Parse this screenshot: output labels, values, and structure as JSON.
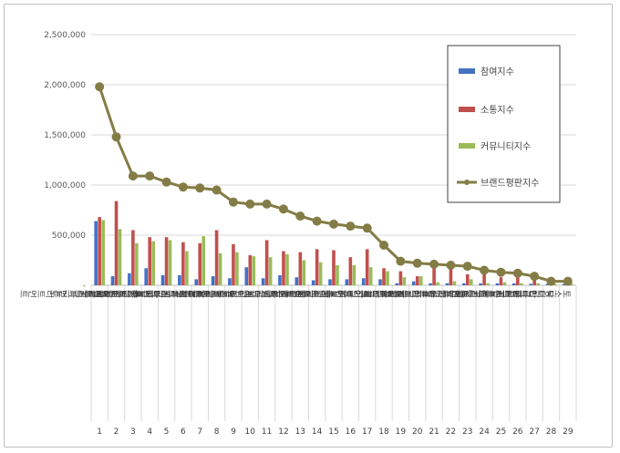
{
  "chart_data": {
    "type": "bar",
    "title": "",
    "xlabel": "",
    "ylabel": "",
    "ylim": [
      0,
      2500000
    ],
    "yticks": [
      "-",
      "500,000",
      "1,000,000",
      "1,500,000",
      "2,000,000",
      "2,500,000"
    ],
    "grid": true,
    "legend_position": "top-right",
    "categories": [
      "헤드스파7트리트먼트",
      "미장센트리트먼트",
      "양방트리트먼트",
      "아모스트리트먼트",
      "케라시스트리트먼트",
      "케라스타즈트리트먼트",
      "로블루트리트먼트",
      "모로칸오일트리트먼트",
      "밀본트리트먼트",
      "제이숲트리트먼트",
      "엘라스틴트리트먼트",
      "츠바키트리트먼트",
      "팬틴트리트먼트",
      "려트리트먼트",
      "모레모트리트먼트",
      "박준트리트먼트",
      "헤어플러스트리트먼트",
      "쿤달트리트먼트",
      "힐링버드트리트먼트",
      "아모트리트먼트",
      "아윤트리트먼트",
      "트리롱트리트먼트",
      "로레알파리트리트먼트",
      "CP-1트리트먼트",
      "로픈트리트먼트",
      "닥터시드트리트먼트",
      "안나플러스트리트먼트",
      "닥터탑트리트먼트",
      "토소웅트리트먼트"
    ],
    "ranks": [
      "1",
      "2",
      "3",
      "4",
      "5",
      "6",
      "7",
      "8",
      "9",
      "10",
      "11",
      "12",
      "13",
      "14",
      "15",
      "16",
      "17",
      "18",
      "19",
      "20",
      "21",
      "22",
      "23",
      "24",
      "25",
      "26",
      "27",
      "28",
      "29"
    ],
    "series": [
      {
        "name": "참여지수",
        "type": "bar",
        "color": "#4472c4",
        "values": [
          640000,
          90000,
          120000,
          170000,
          100000,
          100000,
          60000,
          90000,
          70000,
          180000,
          70000,
          100000,
          80000,
          50000,
          60000,
          60000,
          70000,
          60000,
          20000,
          40000,
          20000,
          20000,
          20000,
          20000,
          20000,
          20000,
          15000,
          15000,
          15000
        ]
      },
      {
        "name": "소통지수",
        "type": "bar",
        "color": "#c0504d",
        "values": [
          680000,
          840000,
          550000,
          480000,
          480000,
          430000,
          420000,
          550000,
          410000,
          300000,
          450000,
          340000,
          330000,
          360000,
          350000,
          280000,
          360000,
          170000,
          140000,
          90000,
          170000,
          170000,
          110000,
          110000,
          80000,
          90000,
          60000,
          50000,
          40000
        ]
      },
      {
        "name": "커뮤니티지수",
        "type": "bar",
        "color": "#9bbb59",
        "values": [
          650000,
          560000,
          420000,
          440000,
          450000,
          340000,
          490000,
          320000,
          330000,
          290000,
          280000,
          310000,
          250000,
          230000,
          200000,
          200000,
          180000,
          140000,
          80000,
          90000,
          30000,
          40000,
          60000,
          20000,
          30000,
          20000,
          20000,
          15000,
          15000
        ]
      },
      {
        "name": "브랜드평판지수",
        "type": "line",
        "color": "#847c46",
        "values": [
          1980000,
          1480000,
          1090000,
          1090000,
          1030000,
          980000,
          970000,
          950000,
          830000,
          810000,
          810000,
          760000,
          690000,
          640000,
          610000,
          590000,
          570000,
          400000,
          240000,
          220000,
          210000,
          200000,
          190000,
          150000,
          130000,
          120000,
          90000,
          40000,
          40000
        ]
      }
    ]
  }
}
